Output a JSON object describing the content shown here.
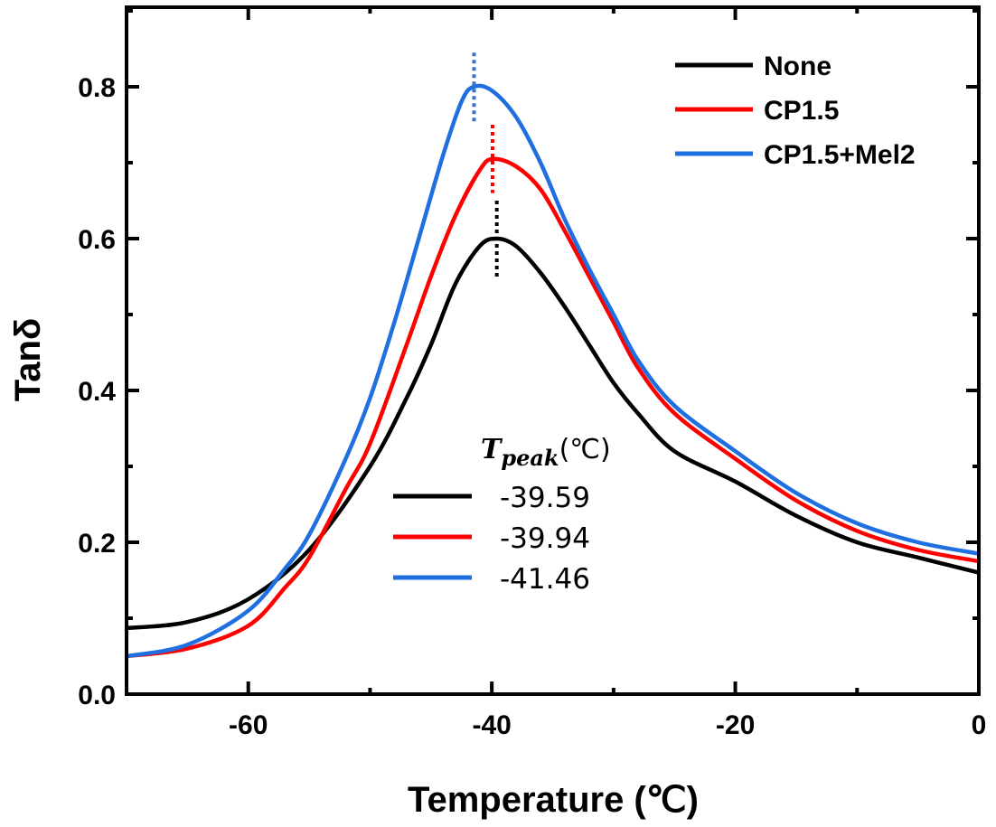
{
  "chart_data": {
    "type": "line",
    "title": "",
    "xlabel": "Temperature (℃)",
    "ylabel": "Tanδ",
    "xlim": [
      -70,
      0
    ],
    "ylim": [
      0.0,
      0.9
    ],
    "x_ticks": [
      -60,
      -40,
      -20,
      0
    ],
    "x_tick_labels": [
      "-60",
      "-40",
      "-20",
      "0"
    ],
    "y_ticks": [
      0.0,
      0.2,
      0.4,
      0.6,
      0.8
    ],
    "y_tick_labels": [
      "0.0",
      "0.2",
      "0.4",
      "0.6",
      "0.8"
    ],
    "grid": false,
    "legend_position": "top-right",
    "series": [
      {
        "name": "None",
        "color": "#000000",
        "x": [
          -70,
          -65,
          -60,
          -55,
          -50,
          -47,
          -45,
          -43,
          -41,
          -39.6,
          -38,
          -36,
          -34,
          -32,
          -30,
          -28,
          -25,
          -20,
          -15,
          -10,
          -5,
          0
        ],
        "y": [
          0.087,
          0.095,
          0.125,
          0.19,
          0.3,
          0.39,
          0.46,
          0.54,
          0.59,
          0.6,
          0.59,
          0.555,
          0.51,
          0.46,
          0.41,
          0.37,
          0.32,
          0.28,
          0.235,
          0.2,
          0.18,
          0.16
        ]
      },
      {
        "name": "CP1.5",
        "color": "#ff0000",
        "x": [
          -70,
          -65,
          -60,
          -57,
          -55,
          -52,
          -50,
          -47,
          -45,
          -43,
          -41,
          -39.9,
          -38,
          -36,
          -34,
          -32,
          -30,
          -28,
          -25,
          -20,
          -15,
          -10,
          -5,
          0
        ],
        "y": [
          0.05,
          0.06,
          0.09,
          0.14,
          0.18,
          0.27,
          0.33,
          0.46,
          0.55,
          0.63,
          0.69,
          0.705,
          0.695,
          0.665,
          0.61,
          0.55,
          0.49,
          0.43,
          0.37,
          0.31,
          0.255,
          0.215,
          0.19,
          0.175
        ]
      },
      {
        "name": "CP1.5+Mel2",
        "color": "#1f6fe0",
        "x": [
          -70,
          -65,
          -60,
          -57,
          -55,
          -52,
          -50,
          -48,
          -46,
          -44,
          -42.5,
          -41.5,
          -40,
          -38,
          -36,
          -34,
          -32,
          -30,
          -28,
          -25,
          -20,
          -15,
          -10,
          -5,
          0
        ],
        "y": [
          0.05,
          0.065,
          0.11,
          0.165,
          0.21,
          0.31,
          0.39,
          0.49,
          0.6,
          0.71,
          0.78,
          0.8,
          0.795,
          0.76,
          0.7,
          0.625,
          0.56,
          0.5,
          0.44,
          0.38,
          0.32,
          0.265,
          0.225,
          0.2,
          0.185
        ]
      }
    ],
    "peak_markers": [
      {
        "series": "None",
        "x": -39.59,
        "y_from": 0.55,
        "y_to": 0.65,
        "color": "#000000"
      },
      {
        "series": "CP1.5",
        "x": -39.94,
        "y_from": 0.66,
        "y_to": 0.75,
        "color": "#ff0000"
      },
      {
        "series": "CP1.5+Mel2",
        "x": -41.46,
        "y_from": 0.75,
        "y_to": 0.845,
        "color": "#3a6fd0"
      }
    ],
    "annotations": {
      "peak_table_title_main": "T",
      "peak_table_title_sub": "peak",
      "peak_table_title_unit": "(℃)",
      "peak_table": [
        {
          "series": "None",
          "value": "-39.59",
          "color": "#000000"
        },
        {
          "series": "CP1.5",
          "value": "-39.94",
          "color": "#ff0000"
        },
        {
          "series": "CP1.5+Mel2",
          "value": "-41.46",
          "color": "#1f6fe0"
        }
      ]
    }
  }
}
